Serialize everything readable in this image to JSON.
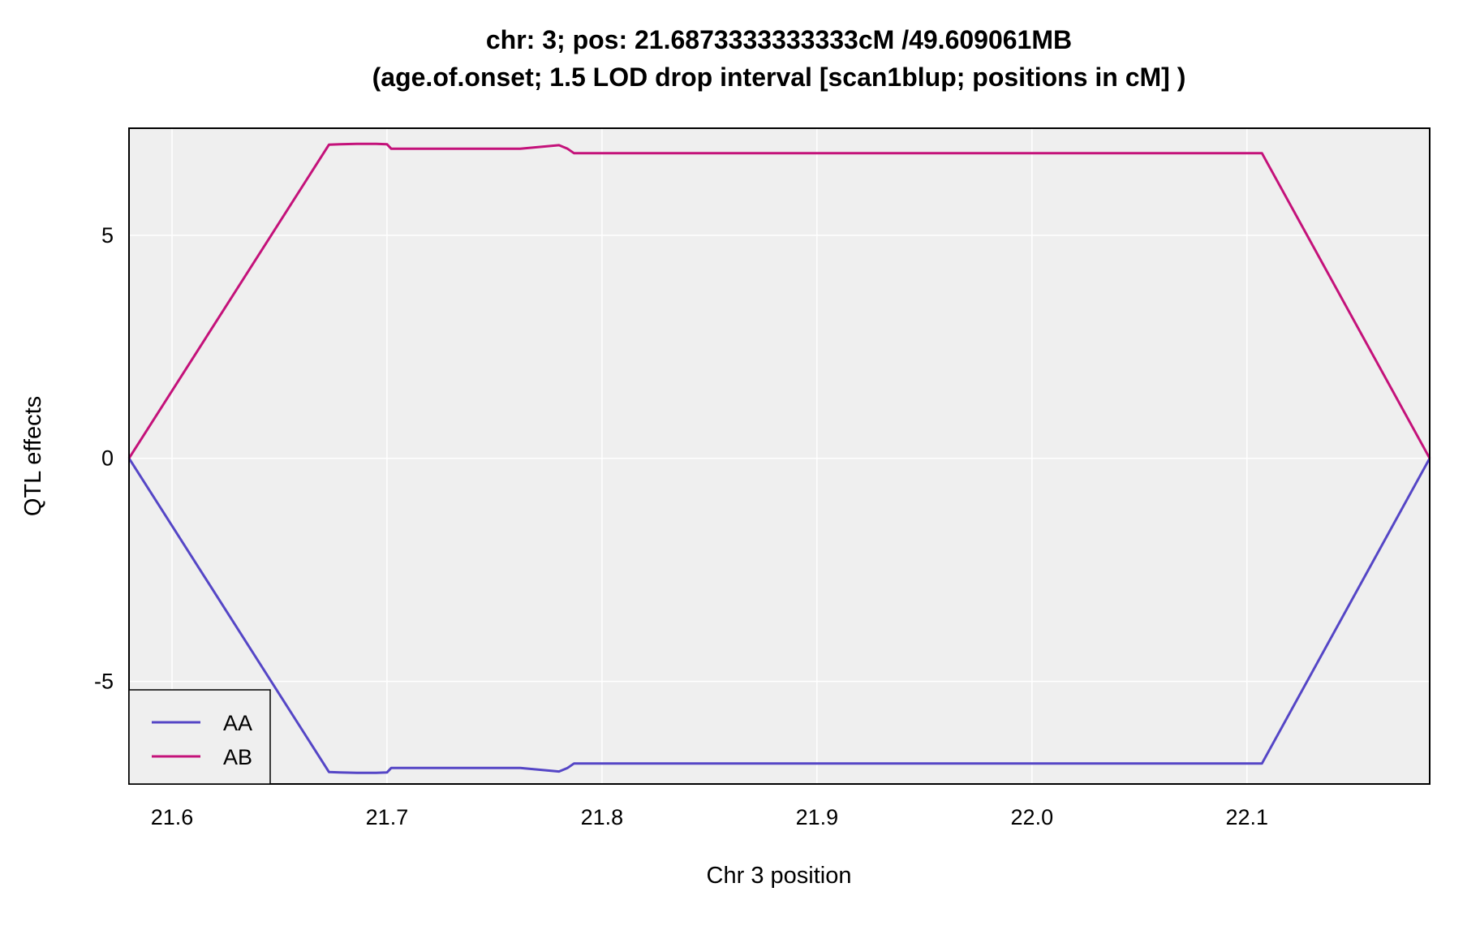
{
  "chart_data": {
    "type": "line",
    "title": "chr: 3; pos: 21.6873333333333cM /49.609061MB",
    "subtitle": "(age.of.onset; 1.5 LOD drop interval [scan1blup; positions in cM] )",
    "xlabel": "Chr 3 position",
    "ylabel": "QTL effects",
    "xlim": [
      21.58,
      22.185
    ],
    "ylim": [
      -7.3,
      7.4
    ],
    "x_ticks": [
      {
        "value": 21.6,
        "label": "21.6"
      },
      {
        "value": 21.7,
        "label": "21.7"
      },
      {
        "value": 21.8,
        "label": "21.8"
      },
      {
        "value": 21.9,
        "label": "21.9"
      },
      {
        "value": 22.0,
        "label": "22.0"
      },
      {
        "value": 22.1,
        "label": "22.1"
      }
    ],
    "y_ticks": [
      {
        "value": -5,
        "label": "-5"
      },
      {
        "value": 0,
        "label": "0"
      },
      {
        "value": 5,
        "label": "5"
      }
    ],
    "grid": true,
    "legend_position": "bottom-left",
    "background_color": "#efefef",
    "series": [
      {
        "name": "AA",
        "color": "#5546c6",
        "x": [
          21.58,
          21.673,
          21.678,
          21.686,
          21.691,
          21.695,
          21.7,
          21.702,
          21.73,
          21.762,
          21.78,
          21.784,
          21.787,
          21.8,
          21.9,
          22.0,
          22.1,
          22.107,
          22.185
        ],
        "y": [
          0,
          -7.03,
          -7.04,
          -7.05,
          -7.05,
          -7.05,
          -7.04,
          -6.94,
          -6.94,
          -6.94,
          -7.02,
          -6.94,
          -6.84,
          -6.84,
          -6.84,
          -6.84,
          -6.84,
          -6.84,
          0
        ]
      },
      {
        "name": "AB",
        "color": "#c4127a",
        "x": [
          21.58,
          21.673,
          21.678,
          21.686,
          21.691,
          21.695,
          21.7,
          21.702,
          21.73,
          21.762,
          21.78,
          21.784,
          21.787,
          21.8,
          21.9,
          22.0,
          22.1,
          22.107,
          22.185
        ],
        "y": [
          0,
          7.03,
          7.04,
          7.05,
          7.05,
          7.05,
          7.04,
          6.94,
          6.94,
          6.94,
          7.02,
          6.94,
          6.84,
          6.84,
          6.84,
          6.84,
          6.84,
          6.84,
          0
        ]
      }
    ]
  }
}
